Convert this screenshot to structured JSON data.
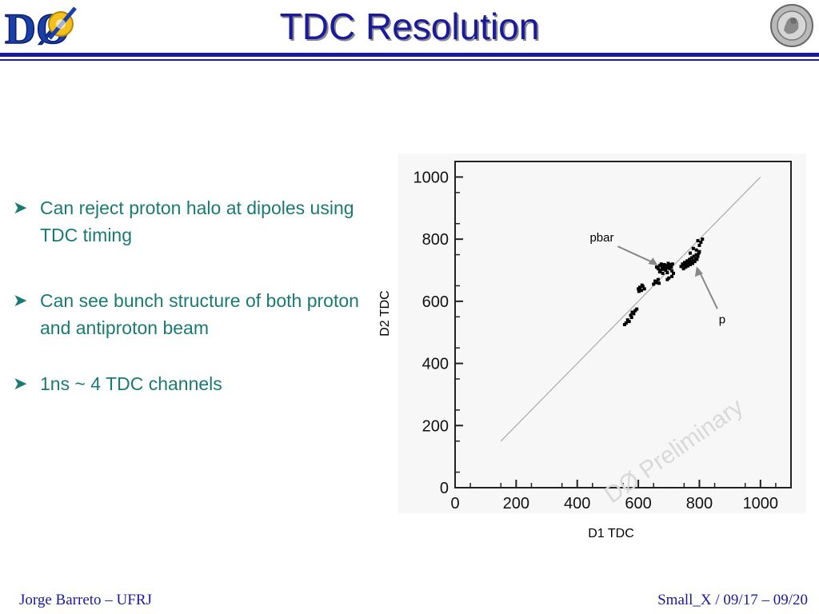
{
  "header": {
    "title": "TDC Resolution",
    "logo_left_text": "DØ"
  },
  "bullets": [
    "Can reject proton halo at dipoles using TDC timing",
    "Can see bunch structure of both proton and antiproton beam",
    "1ns ~ 4 TDC channels"
  ],
  "footer": {
    "left": "Jorge Barreto – UFRJ",
    "right": "Small_X / 09/17 – 09/20"
  },
  "colors": {
    "title": "#1a1a9c",
    "bullets": "#1a7a73",
    "rule": "#1a1a9c"
  },
  "icons": [
    "d0-logo",
    "ufrj-seal-icon",
    "arrow-bullet-icon"
  ],
  "chart_data": {
    "type": "scatter",
    "xlabel": "D1 TDC",
    "ylabel": "D2 TDC",
    "xlim": [
      0,
      1100
    ],
    "ylim": [
      0,
      1050
    ],
    "x_ticks": [
      0,
      200,
      400,
      600,
      800,
      1000
    ],
    "y_ticks": [
      0,
      200,
      400,
      600,
      800,
      1000
    ],
    "x_tick_labels": [
      "0",
      "200",
      "400",
      "600",
      "800",
      "1000"
    ],
    "y_tick_labels": [
      "0",
      "200",
      "400",
      "600",
      "800",
      "1000"
    ],
    "watermark": "DØ Preliminary",
    "diagonal": [
      [
        150,
        150
      ],
      [
        1000,
        1000
      ]
    ],
    "clusters": [
      {
        "label": "pbar",
        "x": 690,
        "y": 715
      },
      {
        "label": "p",
        "x": 775,
        "y": 725
      }
    ],
    "points": [
      [
        660,
        710
      ],
      [
        665,
        705
      ],
      [
        670,
        715
      ],
      [
        672,
        700
      ],
      [
        675,
        720
      ],
      [
        678,
        708
      ],
      [
        680,
        712
      ],
      [
        682,
        703
      ],
      [
        685,
        718
      ],
      [
        688,
        710
      ],
      [
        690,
        700
      ],
      [
        692,
        715
      ],
      [
        695,
        708
      ],
      [
        698,
        722
      ],
      [
        700,
        712
      ],
      [
        703,
        705
      ],
      [
        705,
        718
      ],
      [
        708,
        710
      ],
      [
        710,
        698
      ],
      [
        680,
        690
      ],
      [
        670,
        695
      ],
      [
        695,
        692
      ],
      [
        712,
        720
      ],
      [
        740,
        712
      ],
      [
        745,
        720
      ],
      [
        748,
        705
      ],
      [
        750,
        716
      ],
      [
        752,
        725
      ],
      [
        755,
        710
      ],
      [
        758,
        720
      ],
      [
        760,
        730
      ],
      [
        762,
        714
      ],
      [
        765,
        725
      ],
      [
        768,
        735
      ],
      [
        770,
        718
      ],
      [
        772,
        728
      ],
      [
        775,
        740
      ],
      [
        778,
        722
      ],
      [
        780,
        732
      ],
      [
        782,
        745
      ],
      [
        785,
        728
      ],
      [
        788,
        738
      ],
      [
        790,
        750
      ],
      [
        792,
        735
      ],
      [
        795,
        745
      ],
      [
        798,
        755
      ],
      [
        800,
        760
      ],
      [
        790,
        765
      ],
      [
        780,
        770
      ],
      [
        770,
        755
      ],
      [
        600,
        640
      ],
      [
        605,
        645
      ],
      [
        610,
        635
      ],
      [
        615,
        648
      ],
      [
        620,
        640
      ],
      [
        612,
        652
      ],
      [
        602,
        632
      ],
      [
        650,
        655
      ],
      [
        655,
        665
      ],
      [
        660,
        660
      ],
      [
        665,
        670
      ],
      [
        668,
        658
      ],
      [
        575,
        555
      ],
      [
        580,
        565
      ],
      [
        585,
        560
      ],
      [
        590,
        570
      ],
      [
        595,
        575
      ],
      [
        578,
        548
      ],
      [
        560,
        530
      ],
      [
        565,
        540
      ],
      [
        570,
        535
      ],
      [
        555,
        525
      ],
      [
        700,
        675
      ],
      [
        710,
        680
      ],
      [
        715,
        690
      ],
      [
        695,
        670
      ],
      [
        800,
        780
      ],
      [
        805,
        790
      ],
      [
        795,
        795
      ],
      [
        810,
        800
      ]
    ]
  }
}
